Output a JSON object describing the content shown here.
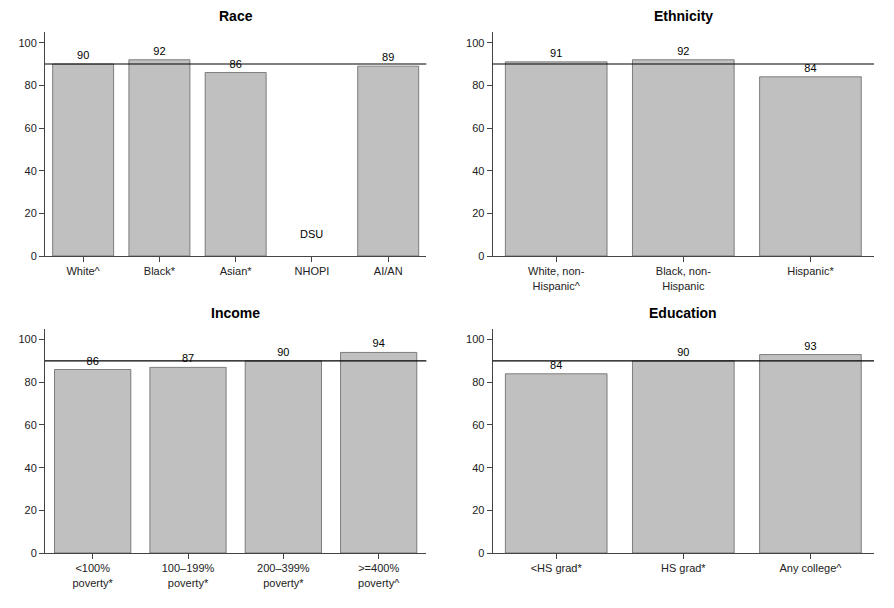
{
  "chart_data": [
    {
      "type": "bar",
      "title": "Race",
      "categories": [
        "White^",
        "Black*",
        "Asian*",
        "NHOPI",
        "AI/AN"
      ],
      "values": [
        90,
        92,
        86,
        null,
        89
      ],
      "color": "#c0c0c0",
      "data_labels": true,
      "grid": false,
      "ylim": [
        0,
        105
      ],
      "yticks": [
        0,
        20,
        40,
        60,
        80,
        100
      ],
      "reference_line": {
        "value": 90,
        "color": "#000000"
      },
      "annotations": [
        {
          "text": "DSU",
          "x": "NHOPI"
        }
      ]
    },
    {
      "type": "bar",
      "title": "Ethnicity",
      "categories": [
        "White, non-\nHispanic^",
        "Black, non-\nHispanic",
        "Hispanic*"
      ],
      "values": [
        91,
        92,
        84
      ],
      "color": "#c0c0c0",
      "data_labels": true,
      "grid": false,
      "ylim": [
        0,
        105
      ],
      "yticks": [
        0,
        20,
        40,
        60,
        80,
        100
      ],
      "reference_line": {
        "value": 90,
        "color": "#000000"
      }
    },
    {
      "type": "bar",
      "title": "Income",
      "categories": [
        "<100%\npoverty*",
        "100–199%\npoverty*",
        "200–399%\npoverty*",
        ">=400%\npoverty^"
      ],
      "values": [
        86,
        87,
        90,
        94
      ],
      "color": "#c0c0c0",
      "data_labels": true,
      "grid": false,
      "ylim": [
        0,
        105
      ],
      "yticks": [
        0,
        20,
        40,
        60,
        80,
        100
      ],
      "reference_line": {
        "value": 90,
        "color": "#000000"
      }
    },
    {
      "type": "bar",
      "title": "Education",
      "categories": [
        "<HS grad*",
        "HS grad*",
        "Any college^"
      ],
      "values": [
        84,
        90,
        93
      ],
      "color": "#c0c0c0",
      "data_labels": true,
      "grid": false,
      "ylim": [
        0,
        105
      ],
      "yticks": [
        0,
        20,
        40,
        60,
        80,
        100
      ],
      "reference_line": {
        "value": 90,
        "color": "#000000"
      }
    }
  ]
}
